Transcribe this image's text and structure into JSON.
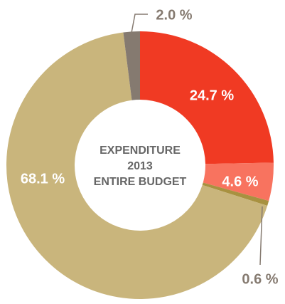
{
  "chart_data": {
    "type": "pie",
    "center_text": [
      "EXPENDITURE",
      "2013",
      "ENTIRE BUDGET"
    ],
    "categories": [
      null,
      null,
      null,
      null,
      null
    ],
    "values": [
      24.7,
      4.6,
      0.6,
      68.1,
      2.0
    ],
    "value_labels": [
      "24.7 %",
      "4.6 %",
      "0.6 %",
      "68.1 %",
      "2.0 %"
    ],
    "colors": [
      "#f03a23",
      "#f8735f",
      "#a89140",
      "#c9b57c",
      "#857a70"
    ]
  }
}
